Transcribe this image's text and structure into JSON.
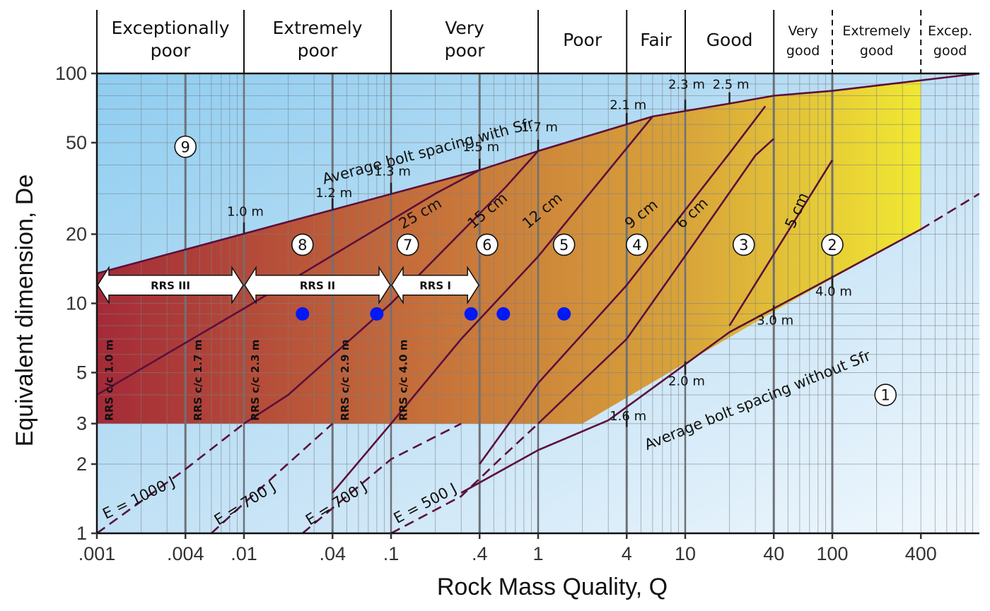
{
  "chart_data": {
    "type": "line",
    "x_axis": {
      "label": "Rock Mass Quality, Q",
      "scale": "log",
      "range": [
        0.001,
        1000
      ],
      "tick_values": [
        0.001,
        0.004,
        0.01,
        0.04,
        0.1,
        0.4,
        1,
        4,
        10,
        40,
        100,
        400
      ],
      "tick_labels": [
        ".001",
        ".004",
        ".01",
        ".04",
        ".1",
        ".4",
        "1",
        "4",
        "10",
        "40",
        "100",
        "400"
      ]
    },
    "y_axis": {
      "label": "Equivalent dimension, De",
      "scale": "log",
      "range": [
        1,
        100
      ],
      "tick_values": [
        1,
        2,
        3,
        5,
        10,
        20,
        50,
        100
      ],
      "tick_labels": [
        "1",
        "2",
        "3",
        "5",
        "10",
        "20",
        "50",
        "100"
      ]
    },
    "grid": true,
    "rock_mass_classes": [
      {
        "label": "Exceptionally\npoor",
        "q_from": 0.001,
        "q_to": 0.01,
        "boundary": "solid"
      },
      {
        "label": "Extremely\npoor",
        "q_from": 0.01,
        "q_to": 0.1,
        "boundary": "solid"
      },
      {
        "label": "Very\npoor",
        "q_from": 0.1,
        "q_to": 1,
        "boundary": "solid"
      },
      {
        "label": "Poor",
        "q_from": 1,
        "q_to": 4,
        "boundary": "solid"
      },
      {
        "label": "Fair",
        "q_from": 4,
        "q_to": 10,
        "boundary": "solid"
      },
      {
        "label": "Good",
        "q_from": 10,
        "q_to": 40,
        "boundary": "solid"
      },
      {
        "label": "Very\ngood",
        "q_from": 40,
        "q_to": 100,
        "boundary": "dashed"
      },
      {
        "label": "Extremely\ngood",
        "q_from": 100,
        "q_to": 400,
        "boundary": "dashed"
      },
      {
        "label": "Excep.\ngood",
        "q_from": 400,
        "q_to": 1000,
        "boundary": null
      }
    ],
    "support_region": {
      "upper_boundary": [
        [
          0.001,
          13.5
        ],
        [
          0.4,
          38
        ],
        [
          1,
          46
        ],
        [
          6,
          65
        ],
        [
          20,
          74
        ],
        [
          40,
          80
        ],
        [
          100,
          84
        ],
        [
          1000,
          100
        ]
      ],
      "lower_boundary": [
        [
          0.001,
          3
        ],
        [
          2,
          3
        ],
        [
          10,
          5.5
        ],
        [
          50,
          10
        ],
        [
          400,
          21
        ]
      ],
      "right_limit_q": 400,
      "gradient_colors": [
        "#a42a38",
        "#c6703a",
        "#d9a53a",
        "#f0e832"
      ]
    },
    "series": [
      {
        "name": "Average bolt spacing with Sfr",
        "style": "solid",
        "points": [
          [
            0.001,
            13.5
          ],
          [
            0.4,
            38
          ],
          [
            1,
            46
          ],
          [
            6,
            65
          ],
          [
            20,
            74
          ],
          [
            40,
            80
          ],
          [
            100,
            84
          ],
          [
            1000,
            100
          ]
        ]
      },
      {
        "name": "Average bolt spacing without Sfr",
        "style": "mixed",
        "points": [
          [
            0.3,
            1.5
          ],
          [
            1,
            2.3
          ],
          [
            3,
            3.1
          ],
          [
            20,
            7.5
          ],
          [
            100,
            13
          ],
          [
            400,
            21
          ],
          [
            1000,
            30
          ]
        ],
        "dashed_ranges": [
          [
            0.3,
            0.5
          ],
          [
            400,
            1000
          ]
        ]
      },
      {
        "name": "",
        "style": "solid",
        "points": [
          [
            0.001,
            4
          ],
          [
            0.01,
            9.5
          ],
          [
            0.2,
            30
          ],
          [
            0.4,
            38
          ]
        ]
      },
      {
        "name": "",
        "style": "solid",
        "points": [
          [
            0.01,
            3
          ],
          [
            0.02,
            4
          ],
          [
            0.1,
            10
          ],
          [
            0.6,
            32
          ],
          [
            1,
            46
          ]
        ]
      },
      {
        "name": "",
        "style": "solid",
        "points": [
          [
            0.04,
            1.5
          ],
          [
            0.1,
            3
          ],
          [
            0.3,
            7
          ],
          [
            1,
            16
          ],
          [
            6,
            65
          ]
        ]
      },
      {
        "name": "",
        "style": "solid",
        "points": [
          [
            0.4,
            2
          ],
          [
            1,
            4.5
          ],
          [
            4,
            12
          ],
          [
            20,
            45
          ],
          [
            35,
            72
          ]
        ]
      },
      {
        "name": "",
        "style": "solid",
        "points": [
          [
            1,
            3
          ],
          [
            4,
            7
          ],
          [
            12,
            19
          ],
          [
            30,
            44
          ],
          [
            40,
            52
          ]
        ]
      },
      {
        "name": "",
        "style": "solid",
        "points": [
          [
            20,
            8
          ],
          [
            100,
            42
          ]
        ]
      },
      {
        "name": "E = 1000 J",
        "style": "dashed",
        "points": [
          [
            0.001,
            1
          ],
          [
            0.004,
            1.9
          ],
          [
            0.01,
            3
          ]
        ]
      },
      {
        "name": "E = 700 J",
        "style": "dashed",
        "points": [
          [
            0.006,
            1
          ],
          [
            0.01,
            1.35
          ],
          [
            0.04,
            3
          ]
        ]
      },
      {
        "name": "E = 700 J",
        "style": "dashed",
        "points": [
          [
            0.025,
            1
          ],
          [
            0.1,
            2.1
          ],
          [
            0.3,
            3
          ]
        ]
      },
      {
        "name": "E = 500 J",
        "style": "dashed",
        "points": [
          [
            0.1,
            1
          ],
          [
            0.3,
            1.45
          ],
          [
            0.55,
            2.1
          ],
          [
            1,
            3
          ]
        ]
      }
    ],
    "vertical_reference_lines": [
      0.004,
      0.04,
      0.4,
      4,
      40,
      100
    ],
    "dashed_class_lines": [
      100,
      400
    ],
    "spacing_labels": [
      {
        "text": "1.0 m",
        "q": 0.01,
        "de": 24
      },
      {
        "text": "1.2 m",
        "q": 0.04,
        "de": 29
      },
      {
        "text": "1.3 m",
        "q": 0.1,
        "de": 36
      },
      {
        "text": "1.5 m",
        "q": 0.4,
        "de": 46
      },
      {
        "text": "1.7 m",
        "q": 1,
        "de": 56
      },
      {
        "text": "2.1 m",
        "q": 4,
        "de": 70
      },
      {
        "text": "2.3 m",
        "q": 10,
        "de": 86
      },
      {
        "text": "2.5 m",
        "q": 20,
        "de": 86
      },
      {
        "text": "4.0 m",
        "q": 100,
        "de": 10.8
      },
      {
        "text": "3.0 m",
        "q": 40,
        "de": 8.1
      },
      {
        "text": "2.0 m",
        "q": 10,
        "de": 4.4
      },
      {
        "text": "1.6 m",
        "q": 4,
        "de": 3.1
      }
    ],
    "thickness_labels": [
      {
        "text": "25 cm",
        "q": 0.12,
        "de": 21,
        "angle": -30
      },
      {
        "text": "15 cm",
        "q": 0.36,
        "de": 21,
        "angle": -40
      },
      {
        "text": "12 cm",
        "q": 0.85,
        "de": 21,
        "angle": -40
      },
      {
        "text": "9 cm",
        "q": 4.2,
        "de": 21,
        "angle": -38
      },
      {
        "text": "6 cm",
        "q": 9.5,
        "de": 21,
        "angle": -43
      },
      {
        "text": "5 cm",
        "q": 55,
        "de": 21,
        "angle": -67
      }
    ],
    "zone_numbers": [
      {
        "text": "9",
        "q": 0.004,
        "de": 48
      },
      {
        "text": "8",
        "q": 0.025,
        "de": 18
      },
      {
        "text": "7",
        "q": 0.13,
        "de": 18
      },
      {
        "text": "6",
        "q": 0.45,
        "de": 18
      },
      {
        "text": "5",
        "q": 1.5,
        "de": 18
      },
      {
        "text": "4",
        "q": 4.7,
        "de": 18
      },
      {
        "text": "3",
        "q": 25,
        "de": 18
      },
      {
        "text": "2",
        "q": 100,
        "de": 18
      },
      {
        "text": "1",
        "q": 230,
        "de": 4
      }
    ],
    "line_labels": [
      {
        "text": "Average bolt spacing with Sfr",
        "q": 0.035,
        "de": 33,
        "angle": -15
      },
      {
        "text": "Average bolt spacing without Sfr",
        "q": 5.5,
        "de": 2.3,
        "angle": -22
      },
      {
        "text": "E = 1000 J",
        "q": 0.00115,
        "de": 1.15,
        "angle": -26
      },
      {
        "text": "E = 700 J",
        "q": 0.0067,
        "de": 1.08,
        "angle": -32
      },
      {
        "text": "E = 700 J",
        "q": 0.028,
        "de": 1.08,
        "angle": -32
      },
      {
        "text": "E = 500 J",
        "q": 0.11,
        "de": 1.1,
        "angle": -28
      }
    ],
    "rrs_labels": [
      {
        "text": "RRS  c/c 1.0 m",
        "q": 0.0011
      },
      {
        "text": "RRS  c/c 1.7 m",
        "q": 0.0044
      },
      {
        "text": "RRS  c/c 2.3 m",
        "q": 0.0108
      },
      {
        "text": "RRS  c/c 2.9 m",
        "q": 0.044
      },
      {
        "text": "RRS  c/c 4.0 m",
        "q": 0.11
      }
    ],
    "rrs_ranges": [
      {
        "label": "RRS III",
        "q_from": 0.001,
        "q_to": 0.01,
        "de": 12
      },
      {
        "label": "RRS II",
        "q_from": 0.01,
        "q_to": 0.1,
        "de": 12
      },
      {
        "label": "RRS I",
        "q_from": 0.1,
        "q_to": 0.4,
        "de": 12
      }
    ],
    "data_points": {
      "color": "#0019f5",
      "points": [
        [
          0.025,
          9
        ],
        [
          0.08,
          9
        ],
        [
          0.35,
          9
        ],
        [
          0.58,
          9
        ],
        [
          1.5,
          9
        ]
      ]
    }
  }
}
